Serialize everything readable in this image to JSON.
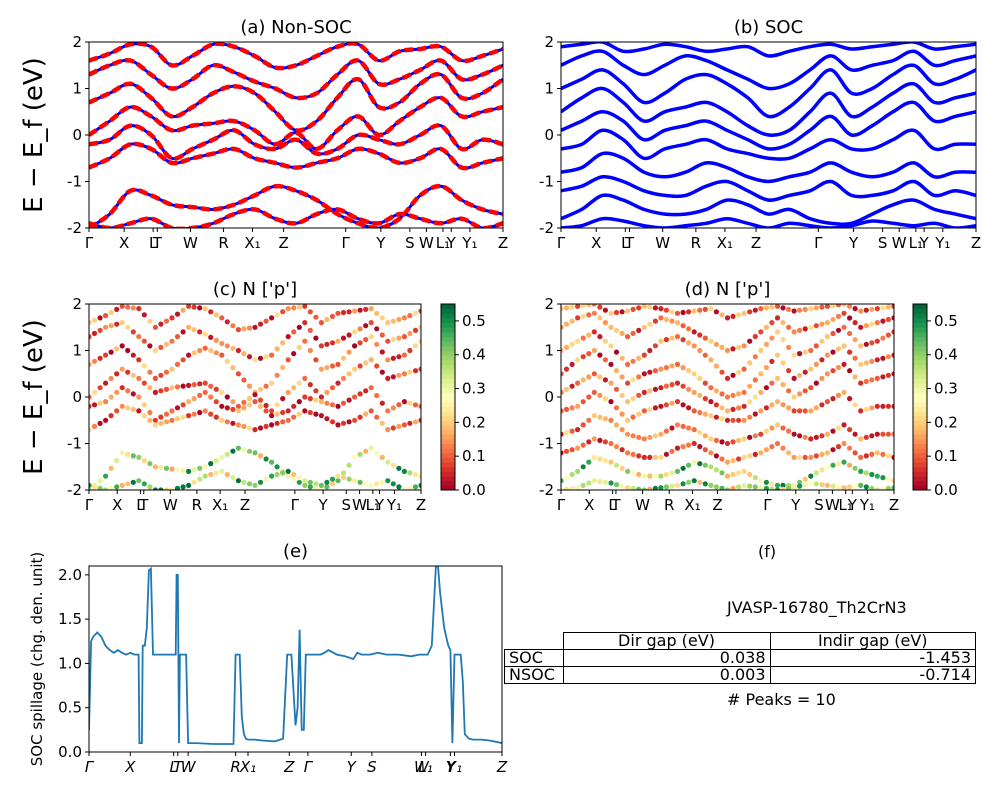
{
  "chart_data": [
    {
      "type": "line",
      "panel": "a",
      "title": "(a) Non-SOC",
      "ylabel": "E − E_f (eV)",
      "ylim": [
        -2,
        2
      ],
      "yticks": [
        "-2",
        "-1",
        "0",
        "1",
        "2"
      ],
      "kpath": [
        "Γ",
        "X",
        "L",
        "T",
        "W",
        "R",
        "X₁",
        "Z",
        "Γ",
        "Y",
        "S",
        "W",
        "L₁",
        "Y",
        "Y₁",
        "Z"
      ],
      "kpath_positions": [
        0,
        0.085,
        0.155,
        0.165,
        0.245,
        0.325,
        0.395,
        0.47,
        0.62,
        0.705,
        0.775,
        0.815,
        0.855,
        0.875,
        0.92,
        1.0
      ],
      "series": [
        {
          "values": [
            1.6,
            1.75,
            1.95,
            1.9,
            1.5,
            1.7,
            1.95,
            1.9,
            1.7,
            1.45,
            1.5,
            1.7,
            1.9,
            1.95,
            1.6,
            1.8,
            1.85,
            1.9,
            1.6,
            1.7,
            1.85
          ]
        },
        {
          "values": [
            1.3,
            1.5,
            1.6,
            1.3,
            1.0,
            1.2,
            1.5,
            1.35,
            1.15,
            1.0,
            0.8,
            0.9,
            1.3,
            1.6,
            1.1,
            1.2,
            1.4,
            1.6,
            1.2,
            1.3,
            1.5
          ]
        },
        {
          "values": [
            0.7,
            0.9,
            1.1,
            0.8,
            0.4,
            0.6,
            0.9,
            1.05,
            0.9,
            0.5,
            0.1,
            0.3,
            0.8,
            1.2,
            0.6,
            0.7,
            1.1,
            1.3,
            0.8,
            0.9,
            1.2
          ]
        },
        {
          "values": [
            0.0,
            0.3,
            0.6,
            0.4,
            0.1,
            0.2,
            0.25,
            0.3,
            0.1,
            -0.2,
            0.05,
            -0.3,
            0.1,
            0.4,
            0.0,
            0.3,
            0.6,
            0.8,
            0.4,
            0.5,
            0.6
          ]
        },
        {
          "values": [
            -0.2,
            -0.1,
            0.2,
            0.0,
            -0.5,
            -0.3,
            -0.1,
            0.1,
            -0.2,
            -0.3,
            -0.1,
            -0.4,
            -0.3,
            0.0,
            -0.1,
            -0.2,
            0.0,
            0.2,
            -0.3,
            -0.1,
            -0.2
          ]
        },
        {
          "values": [
            -0.7,
            -0.5,
            -0.2,
            -0.3,
            -0.6,
            -0.5,
            -0.4,
            -0.3,
            -0.5,
            -0.6,
            -0.7,
            -0.6,
            -0.5,
            -0.3,
            -0.4,
            -0.6,
            -0.5,
            -0.3,
            -0.7,
            -0.6,
            -0.5
          ]
        },
        {
          "values": [
            -2.0,
            -1.7,
            -1.2,
            -1.3,
            -1.5,
            -1.55,
            -1.6,
            -1.5,
            -1.3,
            -1.1,
            -1.2,
            -1.4,
            -1.7,
            -1.9,
            -2.0,
            -1.8,
            -1.3,
            -1.1,
            -1.4,
            -1.6,
            -1.7
          ]
        },
        {
          "values": [
            -1.9,
            -2.0,
            -1.9,
            -1.8,
            -2.0,
            -2.0,
            -1.9,
            -1.7,
            -1.6,
            -1.8,
            -1.9,
            -1.7,
            -1.6,
            -1.8,
            -1.9,
            -1.7,
            -1.8,
            -1.9,
            -1.8,
            -2.0,
            -1.9
          ]
        }
      ]
    },
    {
      "type": "line",
      "panel": "b",
      "title": "(b) SOC",
      "ylim": [
        -2,
        2
      ],
      "yticks": [
        "-2",
        "-1",
        "0",
        "1",
        "2"
      ],
      "kpath": [
        "Γ",
        "X",
        "L",
        "T",
        "W",
        "R",
        "X₁",
        "Z",
        "Γ",
        "Y",
        "S",
        "W",
        "L₁",
        "Y",
        "Y₁",
        "Z"
      ],
      "kpath_positions": [
        0,
        0.085,
        0.155,
        0.165,
        0.245,
        0.325,
        0.395,
        0.47,
        0.62,
        0.705,
        0.775,
        0.815,
        0.855,
        0.875,
        0.92,
        1.0
      ],
      "series": [
        {
          "values": [
            1.9,
            1.95,
            2.0,
            1.8,
            1.85,
            1.95,
            1.9,
            1.8,
            1.85,
            1.9,
            1.7,
            1.8,
            1.9,
            1.95,
            1.85,
            1.9,
            1.95,
            2.0,
            1.85,
            1.9,
            1.95
          ]
        },
        {
          "values": [
            1.5,
            1.7,
            1.8,
            1.5,
            1.3,
            1.5,
            1.7,
            1.6,
            1.4,
            1.2,
            1.0,
            1.1,
            1.4,
            1.7,
            1.4,
            1.5,
            1.6,
            1.8,
            1.5,
            1.6,
            1.7
          ]
        },
        {
          "values": [
            1.0,
            1.2,
            1.4,
            1.1,
            0.7,
            0.9,
            1.2,
            1.3,
            1.1,
            0.8,
            0.4,
            0.6,
            1.0,
            1.4,
            0.9,
            1.0,
            1.3,
            1.5,
            1.1,
            1.2,
            1.4
          ]
        },
        {
          "values": [
            0.5,
            0.8,
            1.0,
            0.7,
            0.3,
            0.5,
            0.6,
            0.7,
            0.5,
            0.2,
            0.0,
            0.1,
            0.5,
            0.9,
            0.4,
            0.6,
            0.9,
            1.1,
            0.7,
            0.8,
            0.9
          ]
        },
        {
          "values": [
            0.1,
            0.3,
            0.5,
            0.3,
            -0.1,
            0.1,
            0.2,
            0.3,
            0.1,
            -0.1,
            -0.3,
            -0.2,
            0.1,
            0.4,
            0.0,
            0.2,
            0.5,
            0.7,
            0.3,
            0.4,
            0.5
          ]
        },
        {
          "values": [
            -0.3,
            -0.2,
            0.1,
            -0.1,
            -0.5,
            -0.3,
            -0.2,
            -0.1,
            -0.3,
            -0.4,
            -0.5,
            -0.5,
            -0.3,
            -0.1,
            -0.3,
            -0.3,
            -0.1,
            0.1,
            -0.3,
            -0.2,
            -0.2
          ]
        },
        {
          "values": [
            -0.8,
            -0.7,
            -0.4,
            -0.5,
            -0.8,
            -0.9,
            -0.8,
            -0.6,
            -0.7,
            -0.9,
            -1.0,
            -0.9,
            -0.8,
            -0.6,
            -0.8,
            -0.9,
            -0.8,
            -0.6,
            -0.9,
            -0.8,
            -0.8
          ]
        },
        {
          "values": [
            -1.2,
            -1.1,
            -0.9,
            -1.0,
            -1.2,
            -1.3,
            -1.3,
            -1.1,
            -1.0,
            -1.2,
            -1.4,
            -1.3,
            -1.2,
            -1.0,
            -1.3,
            -1.3,
            -1.2,
            -1.0,
            -1.3,
            -1.2,
            -1.3
          ]
        },
        {
          "values": [
            -1.8,
            -1.6,
            -1.3,
            -1.4,
            -1.6,
            -1.7,
            -1.7,
            -1.6,
            -1.4,
            -1.5,
            -1.7,
            -1.6,
            -1.8,
            -1.9,
            -1.9,
            -1.7,
            -1.5,
            -1.4,
            -1.6,
            -1.7,
            -1.8
          ]
        },
        {
          "values": [
            -2.0,
            -1.95,
            -1.8,
            -1.85,
            -1.95,
            -2.0,
            -1.95,
            -1.9,
            -1.8,
            -1.9,
            -2.0,
            -1.9,
            -1.95,
            -2.0,
            -1.95,
            -1.85,
            -1.9,
            -1.95,
            -1.9,
            -2.0,
            -1.95
          ]
        }
      ]
    },
    {
      "type": "scatter",
      "panel": "c",
      "title": "(c)  N ['p']",
      "ylabel": "E − E_f (eV)",
      "ylim": [
        -2,
        2
      ],
      "yticks": [
        "-2",
        "-1",
        "0",
        "1",
        "2"
      ],
      "kpath": [
        "Γ",
        "X",
        "L",
        "T",
        "W",
        "R",
        "X₁",
        "Z",
        "Γ",
        "Y",
        "S",
        "W",
        "L₁",
        "Y",
        "Y₁",
        "Z"
      ],
      "kpath_positions": [
        0,
        0.085,
        0.155,
        0.165,
        0.245,
        0.325,
        0.395,
        0.47,
        0.62,
        0.705,
        0.775,
        0.815,
        0.855,
        0.875,
        0.92,
        1.0
      ],
      "colorbar": {
        "min": 0.0,
        "max": 0.55,
        "ticks": [
          "0.0",
          "0.1",
          "0.2",
          "0.3",
          "0.4",
          "0.5"
        ]
      }
    },
    {
      "type": "scatter",
      "panel": "d",
      "title": "(d) N ['p']",
      "ylim": [
        -2,
        2
      ],
      "yticks": [
        "-2",
        "-1",
        "0",
        "1",
        "2"
      ],
      "kpath": [
        "Γ",
        "X",
        "L",
        "T",
        "W",
        "R",
        "X₁",
        "Z",
        "Γ",
        "Y",
        "S",
        "W",
        "L₁",
        "Y",
        "Y₁",
        "Z"
      ],
      "kpath_positions": [
        0,
        0.085,
        0.155,
        0.165,
        0.245,
        0.325,
        0.395,
        0.47,
        0.62,
        0.705,
        0.775,
        0.815,
        0.855,
        0.875,
        0.92,
        1.0
      ],
      "colorbar": {
        "min": 0.0,
        "max": 0.55,
        "ticks": [
          "0.0",
          "0.1",
          "0.2",
          "0.3",
          "0.4",
          "0.5"
        ]
      }
    },
    {
      "type": "line",
      "panel": "e",
      "title": "(e)",
      "ylabel": "SOC spillage (chg. den. unit)",
      "ylim": [
        0.0,
        2.1
      ],
      "yticks": [
        "0.0",
        "0.5",
        "1.0",
        "1.5",
        "2.0"
      ],
      "kpath": [
        "Γ",
        "X",
        "L",
        "T",
        "W",
        "R",
        "X₁",
        "Z",
        "Γ",
        "Y",
        "S",
        "W",
        "L₁",
        "Y",
        "Y₁",
        "Z"
      ],
      "kpath_positions": [
        0,
        0.1,
        0.205,
        0.215,
        0.24,
        0.355,
        0.385,
        0.485,
        0.53,
        0.635,
        0.685,
        0.805,
        0.815,
        0.875,
        0.885,
        1.0
      ],
      "x": [
        0,
        0.005,
        0.01,
        0.02,
        0.03,
        0.04,
        0.05,
        0.06,
        0.07,
        0.08,
        0.09,
        0.1,
        0.11,
        0.12,
        0.122,
        0.125,
        0.128,
        0.13,
        0.135,
        0.14,
        0.145,
        0.15,
        0.155,
        0.16,
        0.165,
        0.17,
        0.175,
        0.18,
        0.2,
        0.21,
        0.212,
        0.215,
        0.218,
        0.22,
        0.23,
        0.235,
        0.24,
        0.245,
        0.25,
        0.26,
        0.3,
        0.33,
        0.35,
        0.355,
        0.36,
        0.365,
        0.37,
        0.375,
        0.38,
        0.385,
        0.39,
        0.4,
        0.42,
        0.45,
        0.47,
        0.48,
        0.49,
        0.5,
        0.505,
        0.51,
        0.515,
        0.52,
        0.525,
        0.53,
        0.535,
        0.54,
        0.55,
        0.56,
        0.57,
        0.58,
        0.6,
        0.62,
        0.64,
        0.65,
        0.66,
        0.67,
        0.68,
        0.7,
        0.72,
        0.75,
        0.78,
        0.8,
        0.82,
        0.83,
        0.84,
        0.845,
        0.85,
        0.86,
        0.87,
        0.875,
        0.88,
        0.885,
        0.89,
        0.9,
        0.905,
        0.91,
        0.92,
        0.93,
        0.95,
        0.97,
        1.0
      ],
      "y": [
        0.25,
        1.25,
        1.3,
        1.35,
        1.3,
        1.2,
        1.15,
        1.12,
        1.15,
        1.12,
        1.1,
        1.12,
        1.1,
        1.1,
        0.1,
        0.1,
        0.1,
        1.2,
        1.2,
        1.4,
        2.05,
        2.07,
        1.1,
        1.1,
        1.1,
        1.1,
        1.1,
        1.1,
        1.1,
        1.1,
        2.0,
        2.0,
        0.1,
        1.1,
        1.1,
        1.1,
        0.1,
        0.1,
        0.1,
        0.1,
        0.09,
        0.09,
        0.09,
        1.1,
        1.1,
        1.1,
        0.4,
        0.2,
        0.15,
        0.14,
        0.14,
        0.14,
        0.13,
        0.12,
        0.15,
        1.1,
        1.1,
        0.3,
        0.5,
        1.38,
        0.25,
        0.25,
        1.1,
        1.1,
        1.1,
        1.1,
        1.1,
        1.1,
        1.12,
        1.15,
        1.1,
        1.08,
        1.05,
        1.12,
        1.1,
        1.1,
        1.1,
        1.12,
        1.1,
        1.1,
        1.08,
        1.1,
        1.1,
        1.2,
        2.1,
        2.1,
        1.8,
        1.4,
        1.2,
        1.15,
        0.1,
        1.1,
        1.1,
        1.1,
        0.8,
        0.2,
        0.15,
        0.14,
        0.14,
        0.13,
        0.1
      ]
    },
    {
      "type": "table",
      "panel": "f",
      "title": "(f)",
      "subtitle": "JVASP-16780_Th2CrN3",
      "columns": [
        "",
        "Dir gap (eV)",
        "Indir gap (eV)"
      ],
      "rows": [
        [
          "SOC",
          "0.038",
          "-1.453"
        ],
        [
          "NSOC",
          "0.003",
          "-0.714"
        ]
      ],
      "footnote": "# Peaks = 10"
    }
  ]
}
